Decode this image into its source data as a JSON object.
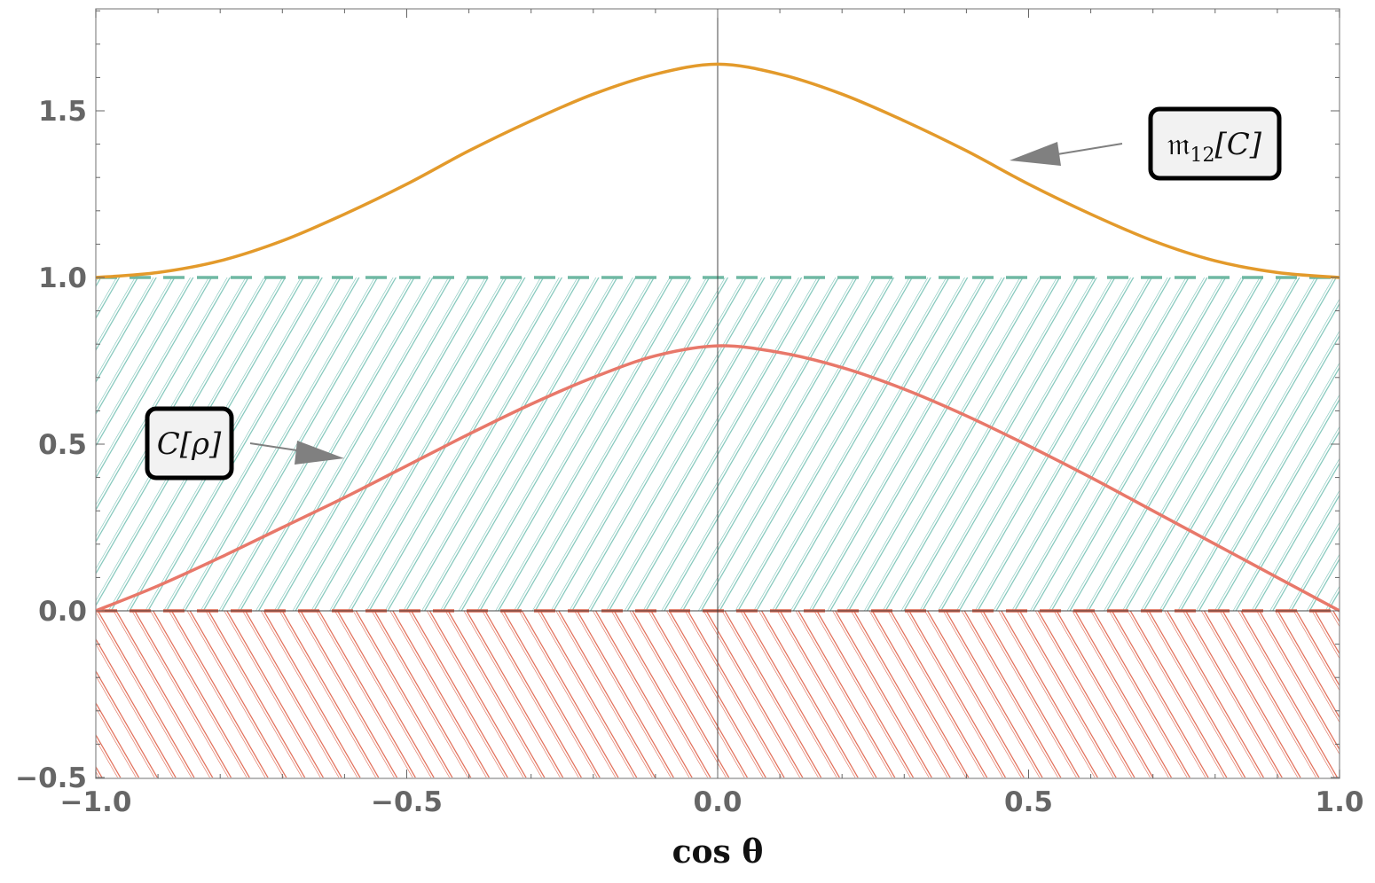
{
  "chart_data": {
    "type": "line",
    "title": "",
    "xlabel": "cos θ",
    "ylabel": "",
    "xlim": [
      -1.0,
      1.0
    ],
    "ylim": [
      -0.5,
      1.8
    ],
    "grid": false,
    "x_ticks": [
      -1.0,
      -0.5,
      0.0,
      0.5,
      1.0
    ],
    "x_tick_labels": [
      "−1.0",
      "−0.5",
      "0.0",
      "0.5",
      "1.0"
    ],
    "y_ticks": [
      -0.5,
      0.0,
      0.5,
      1.0,
      1.5
    ],
    "y_tick_labels": [
      "−0.5",
      "0.0",
      "0.5",
      "1.0",
      "1.5"
    ],
    "colors": {
      "orange": "#e39a2b",
      "salmon": "#e8786a",
      "teal": "#6fb8a3",
      "teal_hatch": "#7cc4b8",
      "red_hatch": "#e0664f",
      "arrow": "#808080",
      "frame": "#888888"
    },
    "series": [
      {
        "name": "𝔪12[C]",
        "color": "#e39a2b",
        "x": [
          -1.0,
          -0.9,
          -0.8,
          -0.7,
          -0.6,
          -0.5,
          -0.4,
          -0.3,
          -0.2,
          -0.1,
          0.0,
          0.1,
          0.2,
          0.3,
          0.4,
          0.5,
          0.6,
          0.7,
          0.8,
          0.9,
          1.0
        ],
        "y": [
          1.0,
          1.015,
          1.05,
          1.11,
          1.19,
          1.28,
          1.38,
          1.47,
          1.55,
          1.61,
          1.64,
          1.61,
          1.55,
          1.47,
          1.38,
          1.28,
          1.19,
          1.11,
          1.05,
          1.015,
          1.0
        ]
      },
      {
        "name": "C[ρ]",
        "color": "#e8786a",
        "x": [
          -1.0,
          -0.9,
          -0.8,
          -0.7,
          -0.6,
          -0.5,
          -0.4,
          -0.3,
          -0.2,
          -0.1,
          0.0,
          0.1,
          0.2,
          0.3,
          0.4,
          0.5,
          0.6,
          0.7,
          0.8,
          0.9,
          1.0
        ],
        "y": [
          0.0,
          0.075,
          0.16,
          0.25,
          0.34,
          0.435,
          0.53,
          0.62,
          0.7,
          0.765,
          0.795,
          0.775,
          0.73,
          0.665,
          0.585,
          0.495,
          0.4,
          0.3,
          0.2,
          0.1,
          0.0
        ]
      }
    ],
    "dashed_lines": [
      {
        "y": 1.0,
        "color": "#6fb8a3"
      },
      {
        "y": 0.0,
        "color": "#e0664f"
      }
    ],
    "hatched_regions": [
      {
        "y_from": 0.0,
        "y_to": 1.0,
        "color": "#7cc4b8",
        "direction": "up-right"
      },
      {
        "y_from": -0.5,
        "y_to": 0.0,
        "color": "#e0664f",
        "direction": "down-right"
      }
    ],
    "annotations": [
      {
        "label": "𝔪",
        "sub": "12",
        "rest": "[C]",
        "target_x": 0.47,
        "target_y": 1.35,
        "series": "𝔪12[C]"
      },
      {
        "label": "C[ρ]",
        "target_x": -0.6,
        "target_y": 0.45,
        "series": "C[ρ]"
      }
    ]
  }
}
